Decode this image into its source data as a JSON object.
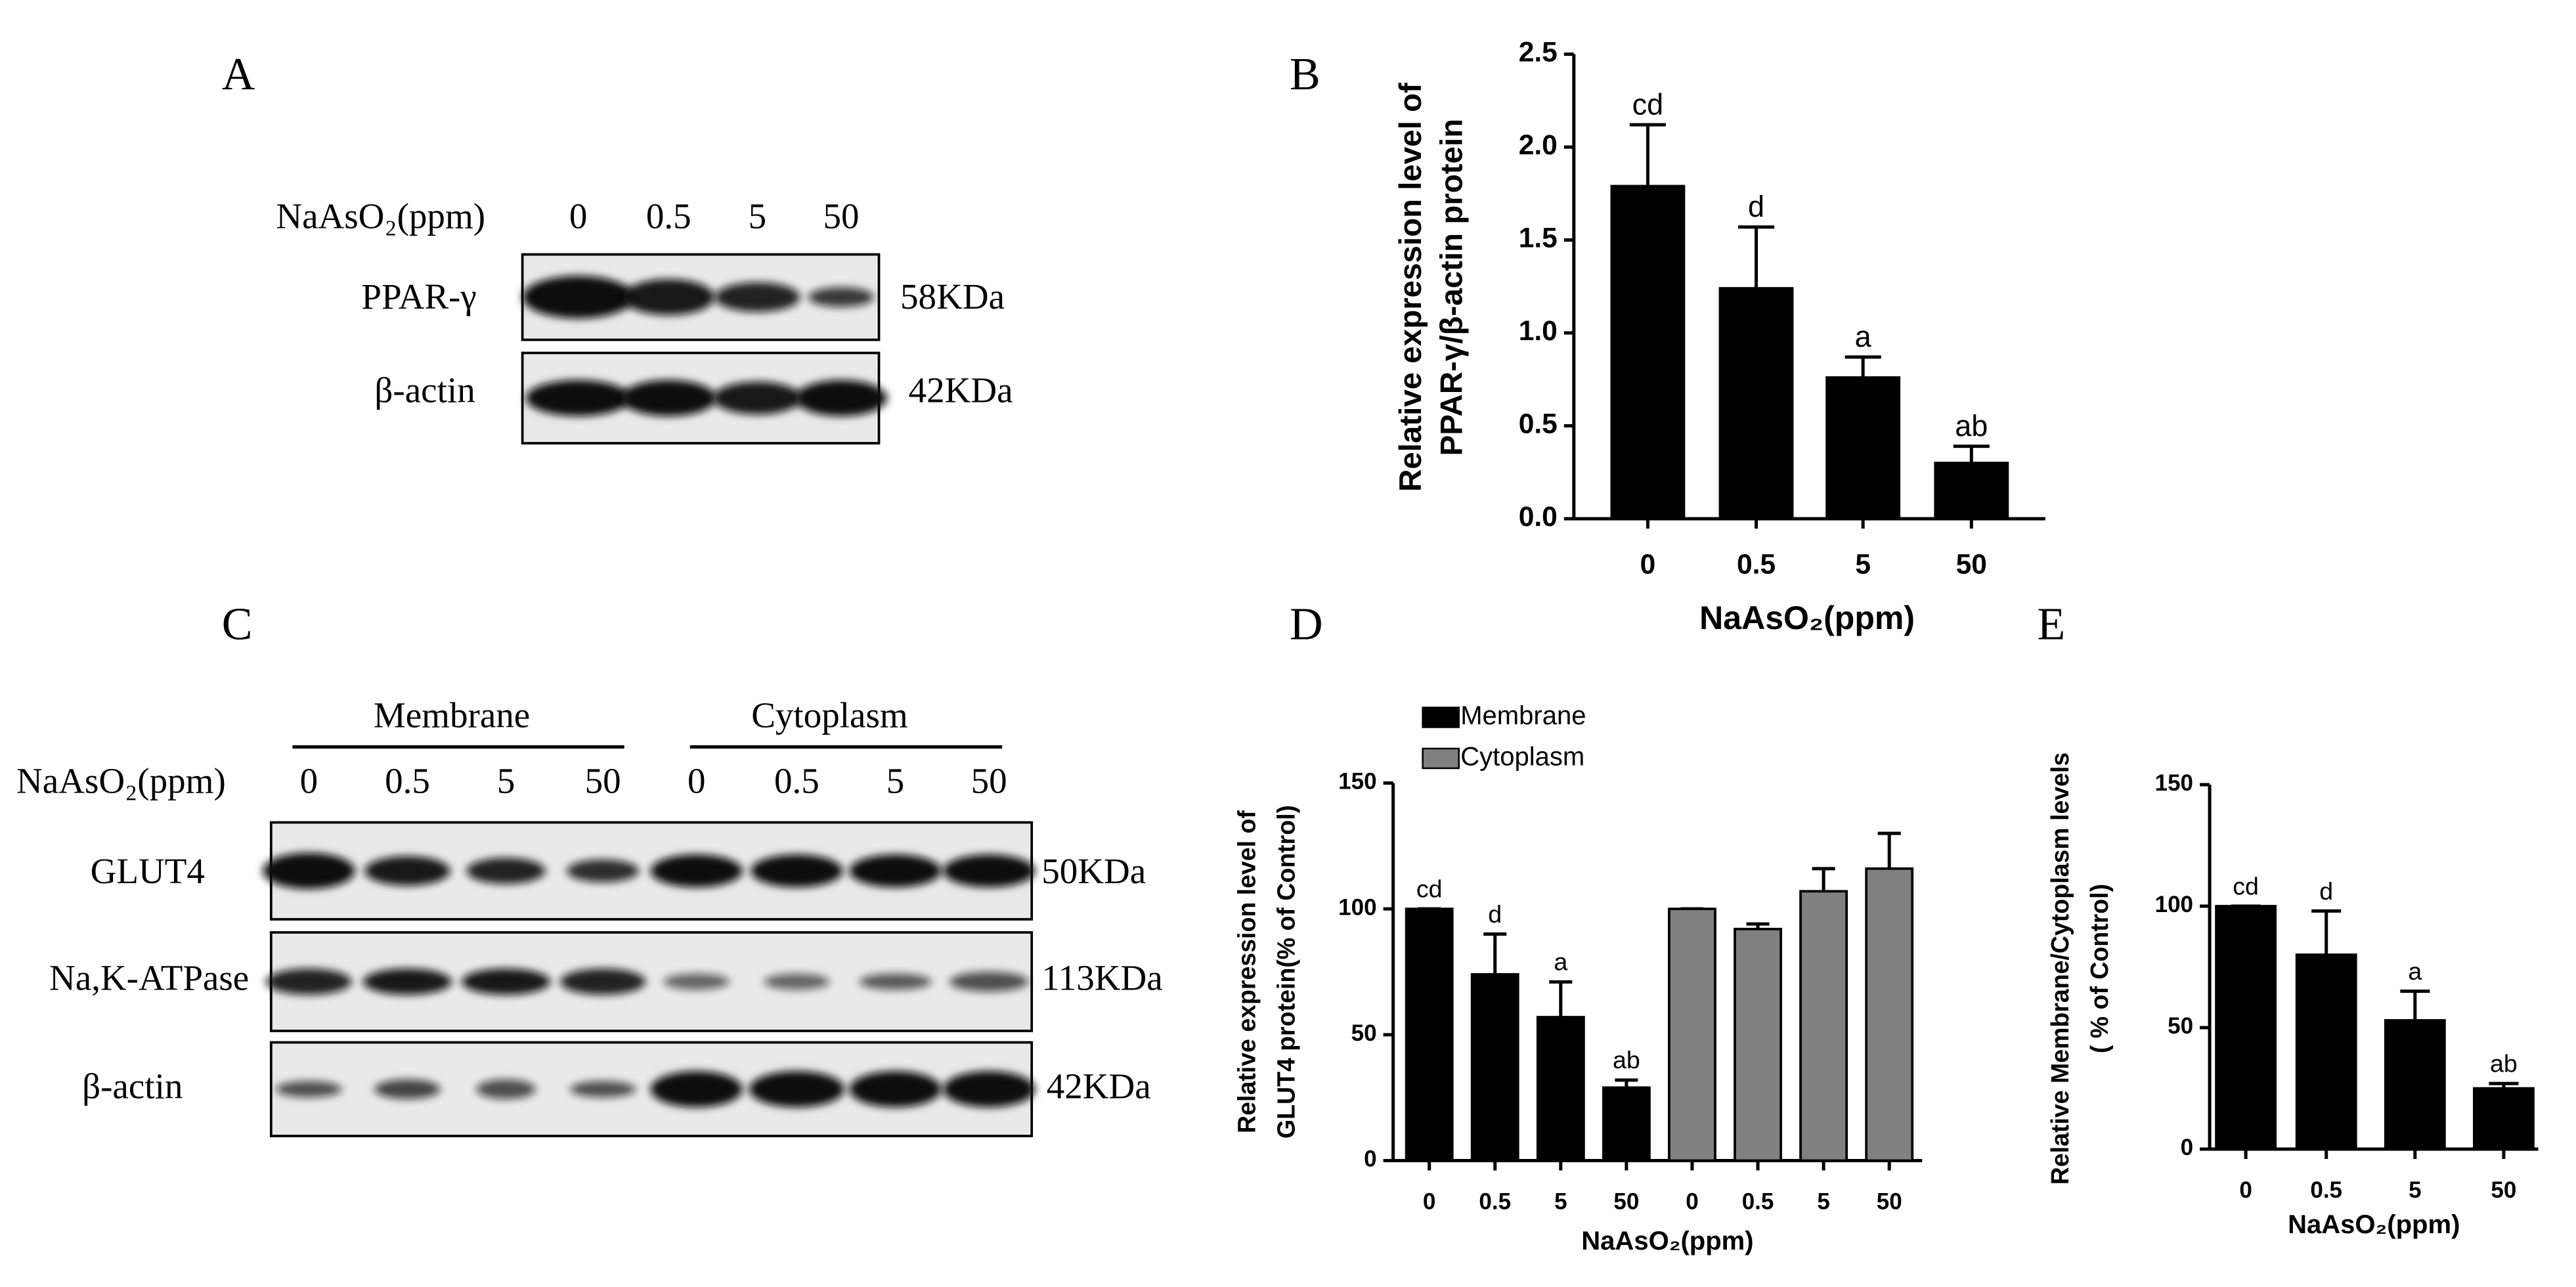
{
  "blot_a": {
    "panel": "A",
    "treatment": "NaAsO₂(ppm)",
    "lanes": [
      "0",
      "0.5",
      "5",
      "50"
    ],
    "rows": [
      {
        "protein": "PPAR-γ",
        "size": "58KDa"
      },
      {
        "protein": "β-actin",
        "size": "42KDa"
      }
    ]
  },
  "blot_c": {
    "panel": "C",
    "groups": [
      "Membrane",
      "Cytoplasm"
    ],
    "treatment": "NaAsO₂(ppm)",
    "lanes": [
      "0",
      "0.5",
      "5",
      "50",
      "0",
      "0.5",
      "5",
      "50"
    ],
    "rows": [
      {
        "protein": "GLUT4",
        "size": "50KDa"
      },
      {
        "protein": "Na,K-ATPase",
        "size": "113KDa"
      },
      {
        "protein": "β-actin",
        "size": "42KDa"
      }
    ]
  },
  "chart_data": [
    {
      "type": "bar",
      "panel": "B",
      "xlabel": "NaAsO₂(ppm)",
      "ylabel": [
        "Relative expression level of",
        "PPAR-γ/β-actin protein"
      ],
      "categories": [
        "0",
        "0.5",
        "5",
        "50"
      ],
      "values": [
        1.79,
        1.24,
        0.76,
        0.3
      ],
      "errors": [
        0.33,
        0.33,
        0.11,
        0.09
      ],
      "annotations": [
        "cd",
        "d",
        "a",
        "ab"
      ],
      "color": "#000000",
      "ylim": [
        0,
        2.5
      ],
      "yticks": [
        {
          "value": 0,
          "label": "0.0"
        },
        0.5,
        {
          "value": 1,
          "label": "1.0"
        },
        1.5,
        {
          "value": 2,
          "label": "2.0"
        },
        2.5
      ]
    },
    {
      "type": "bar",
      "panel": "D",
      "xlabel": "NaAsO₂(ppm)",
      "ylabel": [
        "Relative expression level of",
        "GLUT4 protein(% of Control)"
      ],
      "categories": [
        "0",
        "0.5",
        "5",
        "50",
        "0",
        "0.5",
        "5",
        "50"
      ],
      "series": [
        {
          "name": "Membrane",
          "color": "#000000",
          "values": [
            100,
            74,
            57,
            29,
            null,
            null,
            null,
            null
          ],
          "errors": [
            0,
            16,
            14,
            3,
            null,
            null,
            null,
            null
          ],
          "annotations": [
            "cd",
            "d",
            "a",
            "ab",
            null,
            null,
            null,
            null
          ]
        },
        {
          "name": "Cytoplasm",
          "color": "#808080",
          "values": [
            null,
            null,
            null,
            null,
            100,
            92,
            107,
            116
          ],
          "errors": [
            null,
            null,
            null,
            null,
            0,
            2,
            9,
            14
          ]
        }
      ],
      "ylim": [
        0,
        150
      ],
      "yticks": [
        0,
        50,
        100,
        150
      ]
    },
    {
      "type": "bar",
      "panel": "E",
      "xlabel": "NaAsO₂(ppm)",
      "ylabel": [
        "Relative Membrane/Cytoplasm levels",
        "( % of Control)"
      ],
      "categories": [
        "0",
        "0.5",
        "5",
        "50"
      ],
      "values": [
        100,
        80,
        53,
        25
      ],
      "errors": [
        0,
        18,
        12,
        2
      ],
      "annotations": [
        "cd",
        "d",
        "a",
        "ab"
      ],
      "color": "#000000",
      "ylim": [
        0,
        150
      ],
      "yticks": [
        0,
        50,
        100,
        150
      ]
    }
  ]
}
